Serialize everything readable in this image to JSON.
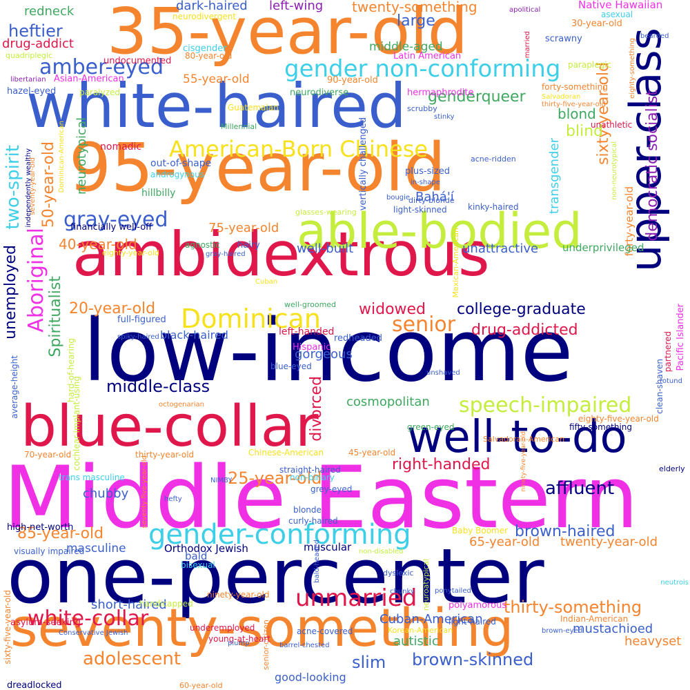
{
  "colors": {
    "navy": "#00007f",
    "crimson": "#e0174a",
    "orange": "#f5842f",
    "royal_blue": "#3a5fcd",
    "magenta": "#ef30e5",
    "lime": "#c5ed3e",
    "yellow": "#f6e11c",
    "cyan": "#3ecfe8",
    "green": "#3fa860",
    "purple": "#8a1fb0"
  },
  "words": [
    {
      "text": "Middle Eastern",
      "color": "magenta"
    },
    {
      "text": "low-income",
      "color": "navy"
    },
    {
      "text": "one-percenter",
      "color": "navy"
    },
    {
      "text": "95-year-old",
      "color": "orange"
    },
    {
      "text": "35-year-old",
      "color": "orange"
    },
    {
      "text": "white-haired",
      "color": "royal_blue"
    },
    {
      "text": "ambidextrous",
      "color": "crimson"
    },
    {
      "text": "blue-collar",
      "color": "crimson"
    },
    {
      "text": "seventy-something",
      "color": "orange"
    },
    {
      "text": "upper-class",
      "color": "navy"
    },
    {
      "text": "well-to-do",
      "color": "navy"
    },
    {
      "text": "able-bodied",
      "color": "lime"
    },
    {
      "text": "gender-conforming",
      "color": "cyan"
    },
    {
      "text": "gender non-conforming",
      "color": "cyan"
    },
    {
      "text": "American-Born Chinese",
      "color": "yellow"
    },
    {
      "text": "Dominican",
      "color": "yellow"
    },
    {
      "text": "speech-impaired",
      "color": "lime"
    },
    {
      "text": "amber-eyed",
      "color": "royal_blue"
    },
    {
      "text": "gray-eyed",
      "color": "royal_blue"
    },
    {
      "text": "white-collar",
      "color": "crimson"
    },
    {
      "text": "unmarried",
      "color": "crimson"
    },
    {
      "text": "Aboriginal",
      "color": "magenta"
    },
    {
      "text": "adolescent",
      "color": "orange"
    },
    {
      "text": "senior",
      "color": "orange"
    },
    {
      "text": "thirty-something",
      "color": "orange"
    },
    {
      "text": "sixty-year-old",
      "color": "orange"
    },
    {
      "text": "democratic socialist",
      "color": "purple"
    },
    {
      "text": "heftier",
      "color": "royal_blue"
    },
    {
      "text": "two-spirit",
      "color": "cyan"
    },
    {
      "text": "Spiritualist",
      "color": "green"
    },
    {
      "text": "50-year-old",
      "color": "orange"
    },
    {
      "text": "college-graduate",
      "color": "navy"
    },
    {
      "text": "drug-addicted",
      "color": "crimson"
    },
    {
      "text": "widowed",
      "color": "crimson"
    },
    {
      "text": "middle-class",
      "color": "navy"
    },
    {
      "text": "cosmopolitan",
      "color": "green"
    },
    {
      "text": "affluent",
      "color": "navy"
    },
    {
      "text": "25-year-old",
      "color": "orange"
    },
    {
      "text": "right-handed",
      "color": "crimson"
    },
    {
      "text": "85-year-old",
      "color": "orange"
    },
    {
      "text": "brown-haired",
      "color": "royal_blue"
    },
    {
      "text": "brown-skinned",
      "color": "royal_blue"
    },
    {
      "text": "slim",
      "color": "royal_blue"
    },
    {
      "text": "20-year-old",
      "color": "orange"
    },
    {
      "text": "40-year-old",
      "color": "orange"
    },
    {
      "text": "unemployed",
      "color": "navy"
    },
    {
      "text": "divorced",
      "color": "crimson"
    },
    {
      "text": "genderqueer",
      "color": "green"
    },
    {
      "text": "blond",
      "color": "green"
    },
    {
      "text": "blind",
      "color": "lime"
    },
    {
      "text": "transgender",
      "color": "cyan"
    },
    {
      "text": "large",
      "color": "royal_blue"
    },
    {
      "text": "twenty-something",
      "color": "orange"
    },
    {
      "text": "redneck",
      "color": "green"
    },
    {
      "text": "drug-addict",
      "color": "crimson"
    },
    {
      "text": "dark-haired",
      "color": "royal_blue"
    },
    {
      "text": "left-wing",
      "color": "purple"
    },
    {
      "text": "Native Hawaiian",
      "color": "magenta"
    },
    {
      "text": "55-year-old",
      "color": "orange"
    },
    {
      "text": "well-built",
      "color": "royal_blue"
    },
    {
      "text": "unattractive",
      "color": "royal_blue"
    },
    {
      "text": "75-year-old",
      "color": "orange"
    },
    {
      "text": "Bahá'í",
      "color": "royal_blue"
    },
    {
      "text": "neurotypical",
      "color": "green"
    },
    {
      "text": "gorgeous",
      "color": "royal_blue"
    },
    {
      "text": "chubby",
      "color": "royal_blue"
    },
    {
      "text": "65-year-old",
      "color": "orange"
    },
    {
      "text": "twenty-year-old",
      "color": "orange"
    },
    {
      "text": "mustachioed",
      "color": "royal_blue"
    },
    {
      "text": "heavyset",
      "color": "orange"
    },
    {
      "text": "masculine",
      "color": "royal_blue"
    },
    {
      "text": "short-haired",
      "color": "royal_blue"
    },
    {
      "text": "Cuban-American",
      "color": "royal_blue"
    },
    {
      "text": "autistic",
      "color": "green"
    },
    {
      "text": "good-looking",
      "color": "royal_blue"
    },
    {
      "text": "middle-aged",
      "color": "green"
    },
    {
      "text": "black-haired",
      "color": "royal_blue"
    },
    {
      "text": "forty-year-old",
      "color": "orange"
    },
    {
      "text": "underprivileged",
      "color": "green"
    },
    {
      "text": "Orthodox Jewish",
      "color": "navy"
    },
    {
      "text": "bald",
      "color": "royal_blue"
    },
    {
      "text": "muscular",
      "color": "navy"
    },
    {
      "text": "Latin American",
      "color": "magenta"
    },
    {
      "text": "neurodiverse",
      "color": "green"
    },
    {
      "text": "Asian-American",
      "color": "magenta"
    },
    {
      "text": "90-year-old",
      "color": "orange"
    },
    {
      "text": "out-of-shape",
      "color": "royal_blue"
    },
    {
      "text": "androgynous",
      "color": "cyan"
    },
    {
      "text": "hillbilly",
      "color": "green"
    },
    {
      "text": "financially well-off",
      "color": "navy"
    },
    {
      "text": "full-figured",
      "color": "royal_blue"
    },
    {
      "text": "left-handed",
      "color": "crimson"
    },
    {
      "text": "Hispanic",
      "color": "magenta"
    },
    {
      "text": "redheaded",
      "color": "royal_blue"
    },
    {
      "text": "well-groomed",
      "color": "green"
    },
    {
      "text": "nomadic",
      "color": "crimson"
    },
    {
      "text": "agnostic",
      "color": "green"
    },
    {
      "text": "hairy",
      "color": "royal_blue"
    },
    {
      "text": "gray-haired",
      "color": "royal_blue"
    },
    {
      "text": "eighty-year-old",
      "color": "yellow"
    },
    {
      "text": "cisgender",
      "color": "cyan"
    },
    {
      "text": "80-year-old",
      "color": "orange"
    },
    {
      "text": "neurodivergent",
      "color": "yellow"
    },
    {
      "text": "undocumented",
      "color": "crimson"
    },
    {
      "text": "quadriplegic",
      "color": "lime"
    },
    {
      "text": "hazel-eyed",
      "color": "royal_blue"
    },
    {
      "text": "libertarian",
      "color": "purple"
    },
    {
      "text": "paralyzed",
      "color": "lime"
    },
    {
      "text": "Guatemalan",
      "color": "yellow"
    },
    {
      "text": "Millennial",
      "color": "green"
    },
    {
      "text": "hermaphrodite",
      "color": "magenta"
    },
    {
      "text": "scrubby",
      "color": "royal_blue"
    },
    {
      "text": "forty-something",
      "color": "orange"
    },
    {
      "text": "Salvadoran",
      "color": "yellow"
    },
    {
      "text": "thirty-five-year-old",
      "color": "orange"
    },
    {
      "text": "scrawny",
      "color": "royal_blue"
    },
    {
      "text": "paraplegic",
      "color": "lime"
    },
    {
      "text": "apolitical",
      "color": "purple"
    },
    {
      "text": "married",
      "color": "crimson"
    },
    {
      "text": "asexual",
      "color": "cyan"
    },
    {
      "text": "30-year-old",
      "color": "orange"
    },
    {
      "text": "bearded",
      "color": "royal_blue"
    },
    {
      "text": "eighty-something",
      "color": "orange"
    },
    {
      "text": "stinky",
      "color": "royal_blue"
    },
    {
      "text": "unathletic",
      "color": "crimson"
    },
    {
      "text": "vertically challenged",
      "color": "royal_blue"
    },
    {
      "text": "plus-sized",
      "color": "royal_blue"
    },
    {
      "text": "acne-ridden",
      "color": "royal_blue"
    },
    {
      "text": "in-shape",
      "color": "royal_blue"
    },
    {
      "text": "bougie",
      "color": "royal_blue"
    },
    {
      "text": "light-skinned",
      "color": "royal_blue"
    },
    {
      "text": "kinky-haired",
      "color": "royal_blue"
    },
    {
      "text": "dirty-blonde",
      "color": "royal_blue"
    },
    {
      "text": "glasses-wearing",
      "color": "lime"
    },
    {
      "text": "non-neurotypical",
      "color": "lime"
    },
    {
      "text": "Mexican-American",
      "color": "yellow"
    },
    {
      "text": "Pacific Islander",
      "color": "magenta"
    },
    {
      "text": "partnered",
      "color": "crimson"
    },
    {
      "text": "clean-shaven",
      "color": "royal_blue"
    },
    {
      "text": "rotund",
      "color": "royal_blue"
    },
    {
      "text": "unshaved",
      "color": "royal_blue"
    },
    {
      "text": "independently wealthy",
      "color": "navy"
    },
    {
      "text": "seventy-year-old",
      "color": "orange"
    },
    {
      "text": "Dominican-American",
      "color": "yellow"
    },
    {
      "text": "average-height",
      "color": "royal_blue"
    },
    {
      "text": "hard-of-hearing",
      "color": "lime"
    },
    {
      "text": "cochlear-implant-using",
      "color": "lime"
    },
    {
      "text": "octogenarian",
      "color": "orange"
    },
    {
      "text": "spiky-haired",
      "color": "royal_blue"
    },
    {
      "text": "Cuban",
      "color": "yellow"
    },
    {
      "text": "blue-eyed",
      "color": "royal_blue"
    },
    {
      "text": "Salvadoran-American",
      "color": "orange"
    },
    {
      "text": "eighty-five-year-old",
      "color": "orange"
    },
    {
      "text": "fifty-something",
      "color": "navy"
    },
    {
      "text": "green-eyed",
      "color": "green"
    },
    {
      "text": "Chinese-American",
      "color": "yellow"
    },
    {
      "text": "45-year-old",
      "color": "orange"
    },
    {
      "text": "elderly",
      "color": "navy"
    },
    {
      "text": "70-year-old",
      "color": "orange"
    },
    {
      "text": "thirty-year-old",
      "color": "orange"
    },
    {
      "text": "trans masculine",
      "color": "cyan"
    },
    {
      "text": "NIMBY",
      "color": "royal_blue"
    },
    {
      "text": "straight-haired",
      "color": "royal_blue"
    },
    {
      "text": "non-binary",
      "color": "cyan"
    },
    {
      "text": "grey-eyed",
      "color": "royal_blue"
    },
    {
      "text": "hefty",
      "color": "royal_blue"
    },
    {
      "text": "seventy-five-year-old",
      "color": "orange"
    },
    {
      "text": "blonde",
      "color": "royal_blue"
    },
    {
      "text": "curly-haired",
      "color": "royal_blue"
    },
    {
      "text": "ninety-five-year-old",
      "color": "orange"
    },
    {
      "text": "high-net-worth",
      "color": "navy"
    },
    {
      "text": "visually impaired",
      "color": "royal_blue"
    },
    {
      "text": "Baby Boomer",
      "color": "yellow"
    },
    {
      "text": "non-disabled",
      "color": "lime"
    },
    {
      "text": "bisexual",
      "color": "cyan"
    },
    {
      "text": "bald-headed",
      "color": "royal_blue"
    },
    {
      "text": "neuroatypical",
      "color": "lime"
    },
    {
      "text": "dyslexic",
      "color": "royal_blue"
    },
    {
      "text": "chunky",
      "color": "royal_blue"
    },
    {
      "text": "ponytailed",
      "color": "royal_blue"
    },
    {
      "text": "neutrois",
      "color": "cyan"
    },
    {
      "text": "ninety-year-old",
      "color": "orange"
    },
    {
      "text": "handicapped",
      "color": "lime"
    },
    {
      "text": "polyamorous",
      "color": "magenta"
    },
    {
      "text": "light-haired",
      "color": "royal_blue"
    },
    {
      "text": "Indian-American",
      "color": "orange"
    },
    {
      "text": "brown-eyed",
      "color": "royal_blue"
    },
    {
      "text": "asylum-seeking",
      "color": "crimson"
    },
    {
      "text": "underemployed",
      "color": "crimson"
    },
    {
      "text": "senior-citizen",
      "color": "orange"
    },
    {
      "text": "young-at-heart",
      "color": "crimson"
    },
    {
      "text": "acne-covered",
      "color": "royal_blue"
    },
    {
      "text": "Korean-American",
      "color": "yellow"
    },
    {
      "text": "Conservative Jewish",
      "color": "royal_blue"
    },
    {
      "text": "plump",
      "color": "royal_blue"
    },
    {
      "text": "barrel-chested",
      "color": "royal_blue"
    },
    {
      "text": "sixty-five-year-old",
      "color": "orange"
    },
    {
      "text": "dreadlocked",
      "color": "navy"
    },
    {
      "text": "60-year-old",
      "color": "orange"
    }
  ]
}
